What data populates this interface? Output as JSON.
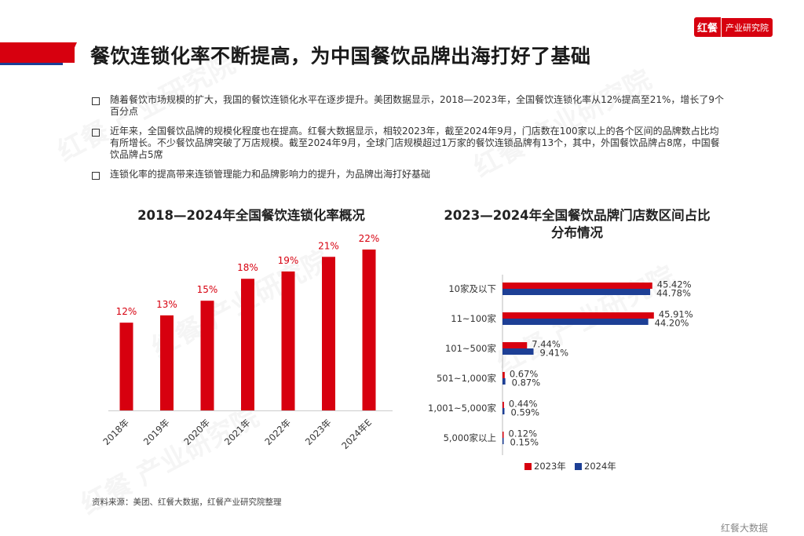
{
  "header": {
    "title": "餐饮连锁化率不断提高，为中国餐饮品牌出海打好了基础"
  },
  "logo": {
    "mark": "红餐",
    "text": "产业研究院"
  },
  "bullets": [
    "随着餐饮市场规模的扩大，我国的餐饮连锁化水平在逐步提升。美团数据显示，2018—2023年，全国餐饮连锁化率从12%提高至21%，增长了9个百分点",
    "近年来，全国餐饮品牌的规模化程度也在提高。红餐大数据显示，相较2023年，截至2024年9月，门店数在100家以上的各个区间的品牌数占比均有所增长。不少餐饮品牌突破了万店规模。截至2024年9月，全球门店规模超过1万家的餐饮连锁品牌有13个，其中，外国餐饮品牌占8席，中国餐饮品牌占5席",
    "连锁化率的提高带来连锁管理能力和品牌影响力的提升，为品牌出海打好基础"
  ],
  "source": "资料来源：美团、红餐大数据，红餐产业研究院整理",
  "footer": "红餐大数据",
  "colors": {
    "red": "#d7000f",
    "blue": "#1d3f95"
  },
  "chart_data": [
    {
      "type": "bar",
      "title": "2018—2024年全国餐饮连锁化率概况",
      "categories": [
        "2018年",
        "2019年",
        "2020年",
        "2021年",
        "2022年",
        "2023年",
        "2024年E"
      ],
      "values": [
        12,
        13,
        15,
        18,
        19,
        21,
        22
      ],
      "labels": [
        "12%",
        "13%",
        "15%",
        "18%",
        "19%",
        "21%",
        "22%"
      ],
      "ylim": [
        0,
        25
      ],
      "color": "#d7000f"
    },
    {
      "type": "bar",
      "orientation": "horizontal",
      "title_lines": [
        "2023—2024年全国餐饮品牌门店数区间占比",
        "分布情况"
      ],
      "categories": [
        "10家及以下",
        "11~100家",
        "101~500家",
        "501~1,000家",
        "1,001~5,000家",
        "5,000家以上"
      ],
      "series": [
        {
          "name": "2023年",
          "color": "#d7000f",
          "values": [
            45.42,
            45.91,
            7.44,
            0.67,
            0.44,
            0.12
          ],
          "labels": [
            "45.42%",
            "45.91%",
            "7.44%",
            "0.67%",
            "0.44%",
            "0.12%"
          ]
        },
        {
          "name": "2024年",
          "color": "#1d3f95",
          "values": [
            44.78,
            44.2,
            9.41,
            0.87,
            0.59,
            0.15
          ],
          "labels": [
            "44.78%",
            "44.20%",
            "9.41%",
            "0.87%",
            "0.59%",
            "0.15%"
          ]
        }
      ],
      "xlim": [
        0,
        50
      ],
      "legend": "bottom"
    }
  ]
}
